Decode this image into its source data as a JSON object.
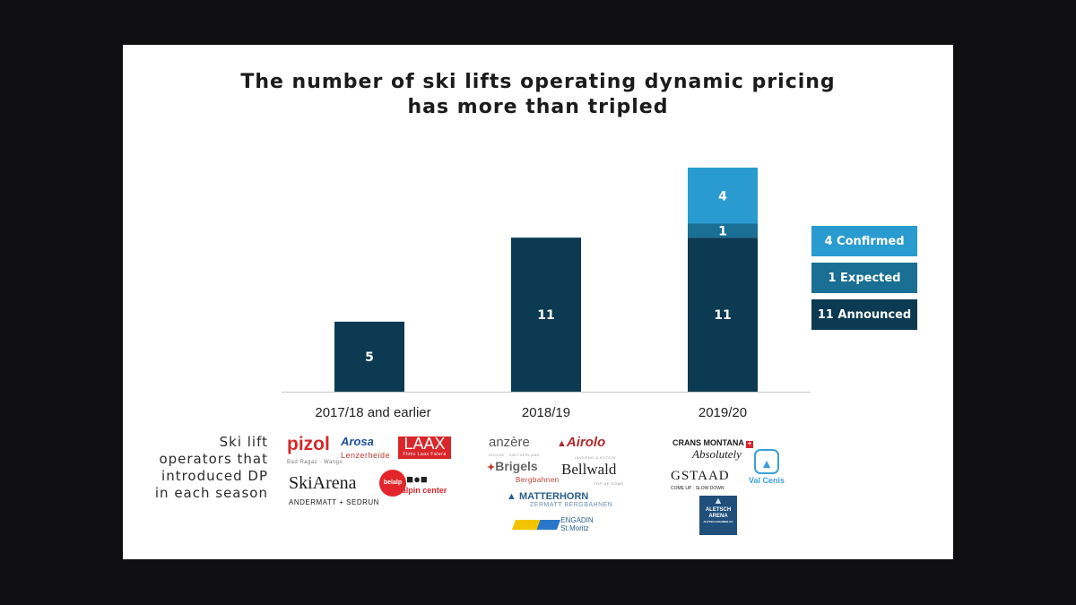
{
  "title": {
    "line1": "The number of ski lifts operating dynamic pricing",
    "line2": "has more than tripled"
  },
  "colors": {
    "announced": "#0b3a52",
    "expected": "#1a6f94",
    "confirmed": "#2a9bd0"
  },
  "chart_data": {
    "type": "bar",
    "stacked": true,
    "categories": [
      "2017/18 and earlier",
      "2018/19",
      "2019/20"
    ],
    "series": [
      {
        "name": "Announced",
        "values": [
          5,
          11,
          11
        ]
      },
      {
        "name": "Expected",
        "values": [
          0,
          0,
          1
        ]
      },
      {
        "name": "Confirmed",
        "values": [
          0,
          0,
          4
        ]
      }
    ],
    "data_labels": [
      [
        "5",
        "",
        ""
      ],
      [
        "11",
        "",
        ""
      ],
      [
        "11",
        "1",
        "4"
      ]
    ],
    "title": "The number of ski lifts operating dynamic pricing has more than tripled",
    "xlabel": "",
    "ylabel": "",
    "ylim": [
      0,
      16
    ],
    "grid": false,
    "legend_position": "right"
  },
  "legend": {
    "confirmed": "4 Confirmed",
    "expected": "1 Expected",
    "announced": "11 Announced"
  },
  "side_note": {
    "line1": "Ski lift",
    "line2": "operators that",
    "line3": "introduced DP",
    "line4": "in each season"
  },
  "logos": {
    "pizol": {
      "name": "pizol",
      "sub": "Bad Ragaz · Wangs"
    },
    "arosa": {
      "name": "Arosa",
      "sub": "Lenzerheide"
    },
    "laax": {
      "name": "LAAX",
      "sub": "Flims Laax Falera"
    },
    "skiarena": {
      "name": "SkiArena",
      "sub": "ANDERMATT + SEDRUN"
    },
    "belalp": {
      "name": "belalp"
    },
    "alpincenter": {
      "name": "alpin center"
    },
    "anzere": {
      "name": "anzère",
      "sub": "SUISSE · SWITZERLAND"
    },
    "airolo": {
      "name": "Airolo",
      "sub": "INVERNO & ESTATE"
    },
    "brigels": {
      "name": "Brigels",
      "sub": "Bergbahnen"
    },
    "bellwald": {
      "name": "Bellwald",
      "sub": "TOP OF GOMS"
    },
    "matterhorn": {
      "name": "MATTERHORN",
      "sub": "ZERMATT BERGBAHNEN"
    },
    "engadin": {
      "name": "ENGADIN",
      "sub": "St.Moritz"
    },
    "cransmontana": {
      "name": "CRANS MONTANA",
      "sub": "Absolutely"
    },
    "gstaad": {
      "name": "GSTAAD",
      "sub": "COME UP · SLOW DOWN"
    },
    "valcenis": {
      "name": "Val Cenis"
    },
    "aletsch": {
      "name": "ALETSCH ARENA",
      "sub": "ALETSCH BAHNEN AG"
    }
  }
}
